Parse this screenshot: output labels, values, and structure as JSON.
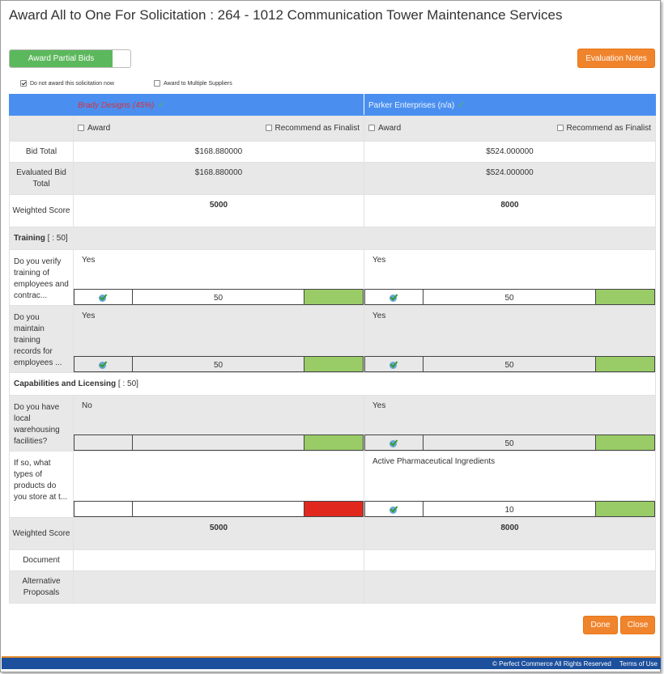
{
  "title": "Award All to One For  Solicitation : 264 - 1012 Communication Tower Maintenance Services",
  "toggle_label": "Award Partial Bids",
  "eval_notes": "Evaluation Notes",
  "do_not_award": "Do not award this solicitation now",
  "award_multiple": "Award to Multiple Suppliers",
  "vendors": [
    {
      "name": "Brady Designs (45%)",
      "bid_total": "$168.880000",
      "evaluated_total": "$168.880000",
      "weighted_score": "5000",
      "weighted_score_bottom": "5000"
    },
    {
      "name": "Parker Enterprises (n/a)",
      "bid_total": "$524.000000",
      "evaluated_total": "$524.000000",
      "weighted_score": "8000",
      "weighted_score_bottom": "8000"
    }
  ],
  "award_label": "Award",
  "finalist_label": "Recommend as Finalist",
  "row_labels": {
    "bid_total": "Bid Total",
    "evaluated_total": "Evaluated Bid Total",
    "weighted_score": "Weighted Score",
    "document": "Document",
    "alt_proposals": "Alternative Proposals"
  },
  "sections": [
    {
      "title": "Training",
      "suffix": " [ : 50]"
    },
    {
      "title": "Capabilities and Licensing",
      "suffix": " [ : 50]"
    }
  ],
  "questions": [
    {
      "q": "Do you verify training of employees and contrac...",
      "a1": "Yes",
      "s1": "50",
      "a2": "Yes",
      "s2": "50"
    },
    {
      "q": "Do you maintain training records for employees ...",
      "a1": "Yes",
      "s1": "50",
      "a2": "Yes",
      "s2": "50"
    },
    {
      "q": "Do you have local warehousing facilities?",
      "a1": "No",
      "s1": "",
      "a2": "Yes",
      "s2": "50"
    },
    {
      "q": "If so, what types of products do you store at t...",
      "a1": "",
      "s1": "",
      "a2": "Active Pharmaceutical Ingredients",
      "s2": "10"
    }
  ],
  "done": "Done",
  "close": "Close",
  "copyright": "© Perfect Commerce All Rights Reserved",
  "terms": "Terms of Use",
  "colors": {
    "accent": "#4a8ff0",
    "orange": "#f0842c",
    "green": "#99cc66",
    "red": "#e1281f",
    "footer": "#1c4f9c"
  }
}
